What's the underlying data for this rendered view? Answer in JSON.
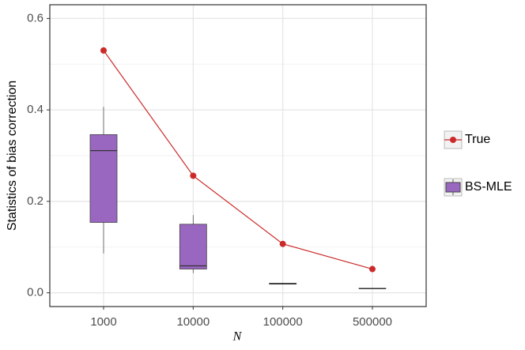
{
  "chart_data": {
    "type": "box",
    "x_label": "N",
    "y_label": "Statistics of bias correction",
    "categories": [
      "1000",
      "10000",
      "100000",
      "500000"
    ],
    "ylim": [
      -0.03,
      0.63
    ],
    "yticks": [
      {
        "value": 0,
        "label": "0.0"
      },
      0.2,
      0.4,
      0.6
    ],
    "y_minor_grid": [
      0.1,
      0.3,
      0.5
    ],
    "grid": true,
    "legend": "right",
    "series": [
      {
        "name": "True",
        "type": "line",
        "color": "#cc2a2a",
        "values": [
          0.53,
          0.256,
          0.107,
          0.052
        ]
      },
      {
        "name": "BS-MLE",
        "type": "box",
        "color": "#9966c0",
        "values": [
          {
            "min": 0.086,
            "q1": 0.154,
            "median": 0.311,
            "q3": 0.346,
            "max": 0.407
          },
          {
            "min": 0.043,
            "q1": 0.052,
            "median": 0.059,
            "q3": 0.15,
            "max": 0.17
          },
          {
            "min": 0.018,
            "q1": 0.019,
            "median": 0.02,
            "q3": 0.021,
            "max": 0.022
          },
          {
            "min": 0.008,
            "q1": 0.009,
            "median": 0.009,
            "q3": 0.01,
            "max": 0.01
          }
        ]
      }
    ]
  }
}
